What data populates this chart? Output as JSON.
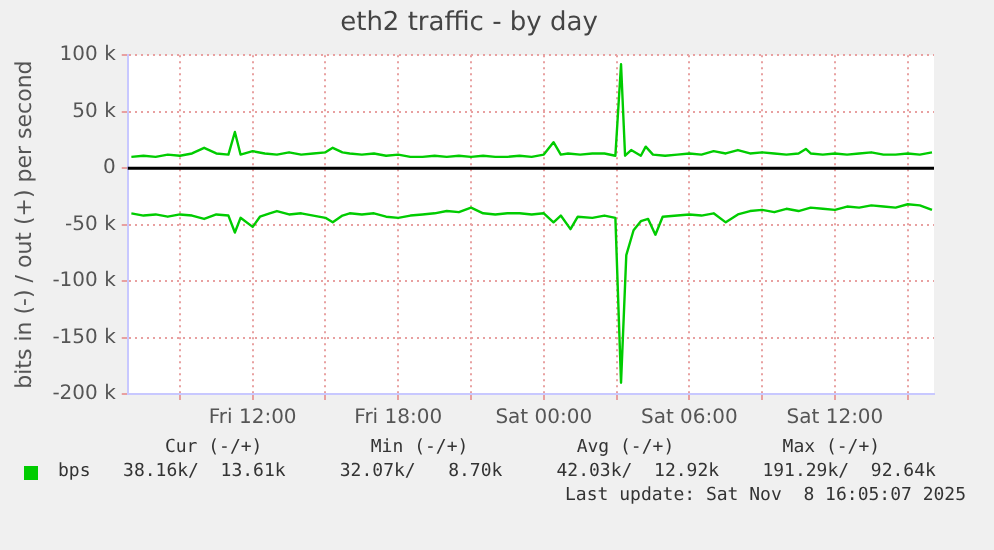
{
  "chart_data": {
    "type": "line",
    "title": "eth2 traffic - by day",
    "ylabel": "bits in (-) / out (+) per second",
    "xlim": [
      "2025-11-07T06:51",
      "2025-11-08T16:05"
    ],
    "xticks": [
      {
        "value": "2025-11-07T09:00",
        "label": null
      },
      {
        "value": "2025-11-07T12:00",
        "label": "Fri 12:00"
      },
      {
        "value": "2025-11-07T15:00",
        "label": null
      },
      {
        "value": "2025-11-07T18:00",
        "label": "Fri 18:00"
      },
      {
        "value": "2025-11-07T21:00",
        "label": null
      },
      {
        "value": "2025-11-08T00:00",
        "label": "Sat 00:00"
      },
      {
        "value": "2025-11-08T03:00",
        "label": null
      },
      {
        "value": "2025-11-08T06:00",
        "label": "Sat 06:00"
      },
      {
        "value": "2025-11-08T09:00",
        "label": null
      },
      {
        "value": "2025-11-08T12:00",
        "label": "Sat 12:00"
      },
      {
        "value": "2025-11-08T15:00",
        "label": null
      }
    ],
    "ylim": [
      -200000,
      100000
    ],
    "yticks": [
      {
        "value": -200000,
        "label": "-200 k"
      },
      {
        "value": -150000,
        "label": "-150 k"
      },
      {
        "value": -100000,
        "label": "-100 k"
      },
      {
        "value": -50000,
        "label": "-50 k"
      },
      0,
      {
        "value": 50000,
        "label": "50 k"
      },
      {
        "value": 100000,
        "label": "100 k"
      }
    ],
    "grid": true,
    "legend": "bottom left",
    "marker": "none",
    "line_style": "solid",
    "ref_lines": [
      {
        "axis": "y",
        "value": 0,
        "color": "#000000"
      }
    ],
    "series": [
      {
        "name": "bps",
        "color": "#00cc00",
        "x": [
          "2025-11-07T07:00",
          "2025-11-07T07:30",
          "2025-11-07T08:00",
          "2025-11-07T08:30",
          "2025-11-07T09:00",
          "2025-11-07T09:30",
          "2025-11-07T10:00",
          "2025-11-07T10:30",
          "2025-11-07T11:00",
          "2025-11-07T11:16",
          "2025-11-07T11:30",
          "2025-11-07T12:00",
          "2025-11-07T12:30",
          "2025-11-07T13:00",
          "2025-11-07T13:30",
          "2025-11-07T14:00",
          "2025-11-07T14:30",
          "2025-11-07T15:00",
          "2025-11-07T15:18",
          "2025-11-07T15:42",
          "2025-11-07T16:00",
          "2025-11-07T16:30",
          "2025-11-07T17:00",
          "2025-11-07T17:30",
          "2025-11-07T18:00",
          "2025-11-07T18:30",
          "2025-11-07T19:00",
          "2025-11-07T19:30",
          "2025-11-07T20:00",
          "2025-11-07T20:30",
          "2025-11-07T21:00",
          "2025-11-07T21:30",
          "2025-11-07T22:00",
          "2025-11-07T22:30",
          "2025-11-07T23:00",
          "2025-11-07T23:30",
          "2025-11-08T00:00",
          "2025-11-08T00:24",
          "2025-11-08T00:42",
          "2025-11-08T01:00",
          "2025-11-08T01:30",
          "2025-11-08T02:00",
          "2025-11-08T02:30",
          "2025-11-08T02:57",
          "2025-11-08T03:11",
          "2025-11-08T03:21",
          "2025-11-08T03:36",
          "2025-11-08T04:00",
          "2025-11-08T04:12",
          "2025-11-08T04:30",
          "2025-11-08T05:00",
          "2025-11-08T05:30",
          "2025-11-08T06:00",
          "2025-11-08T06:30",
          "2025-11-08T07:00",
          "2025-11-08T07:30",
          "2025-11-08T08:00",
          "2025-11-08T08:30",
          "2025-11-08T09:00",
          "2025-11-08T09:30",
          "2025-11-08T10:00",
          "2025-11-08T10:30",
          "2025-11-08T10:48",
          "2025-11-08T11:00",
          "2025-11-08T11:30",
          "2025-11-08T12:00",
          "2025-11-08T12:30",
          "2025-11-08T13:00",
          "2025-11-08T13:30",
          "2025-11-08T14:00",
          "2025-11-08T14:30",
          "2025-11-08T15:00",
          "2025-11-08T15:30",
          "2025-11-08T16:00"
        ],
        "values": [
          10000,
          11000,
          10000,
          12000,
          11000,
          13000,
          18000,
          13000,
          12000,
          32000,
          12000,
          15000,
          13000,
          12000,
          14000,
          12000,
          13000,
          14000,
          18000,
          14000,
          13000,
          12000,
          13000,
          11000,
          12000,
          10000,
          10000,
          11000,
          10000,
          11000,
          10000,
          11000,
          10000,
          10000,
          11000,
          10000,
          12000,
          23000,
          12000,
          13000,
          12000,
          13000,
          13000,
          11000,
          92000,
          11000,
          16000,
          11000,
          19000,
          12000,
          11000,
          12000,
          13000,
          12000,
          15000,
          13000,
          16000,
          13000,
          14000,
          13000,
          12000,
          13000,
          17000,
          13000,
          12000,
          13000,
          12000,
          13000,
          14000,
          12000,
          12000,
          13000,
          12000,
          14000
        ]
      },
      {
        "color": "#00cc00",
        "x": [
          "2025-11-07T07:00",
          "2025-11-07T07:30",
          "2025-11-07T08:00",
          "2025-11-07T08:30",
          "2025-11-07T09:00",
          "2025-11-07T09:30",
          "2025-11-07T10:00",
          "2025-11-07T10:30",
          "2025-11-07T11:00",
          "2025-11-07T11:16",
          "2025-11-07T11:30",
          "2025-11-07T12:00",
          "2025-11-07T12:18",
          "2025-11-07T12:42",
          "2025-11-07T13:00",
          "2025-11-07T13:30",
          "2025-11-07T14:00",
          "2025-11-07T14:30",
          "2025-11-07T15:00",
          "2025-11-07T15:18",
          "2025-11-07T15:42",
          "2025-11-07T16:00",
          "2025-11-07T16:30",
          "2025-11-07T17:00",
          "2025-11-07T17:30",
          "2025-11-07T18:00",
          "2025-11-07T18:30",
          "2025-11-07T19:00",
          "2025-11-07T19:30",
          "2025-11-07T20:00",
          "2025-11-07T20:30",
          "2025-11-07T21:00",
          "2025-11-07T21:30",
          "2025-11-07T22:00",
          "2025-11-07T22:30",
          "2025-11-07T23:00",
          "2025-11-07T23:30",
          "2025-11-08T00:00",
          "2025-11-08T00:24",
          "2025-11-08T00:42",
          "2025-11-08T01:06",
          "2025-11-08T01:24",
          "2025-11-08T02:00",
          "2025-11-08T02:30",
          "2025-11-08T02:57",
          "2025-11-08T03:11",
          "2025-11-08T03:24",
          "2025-11-08T03:42",
          "2025-11-08T04:00",
          "2025-11-08T04:18",
          "2025-11-08T04:36",
          "2025-11-08T04:54",
          "2025-11-08T05:30",
          "2025-11-08T06:00",
          "2025-11-08T06:30",
          "2025-11-08T07:00",
          "2025-11-08T07:30",
          "2025-11-08T08:00",
          "2025-11-08T08:30",
          "2025-11-08T09:00",
          "2025-11-08T09:30",
          "2025-11-08T10:00",
          "2025-11-08T10:30",
          "2025-11-08T11:00",
          "2025-11-08T11:30",
          "2025-11-08T12:00",
          "2025-11-08T12:30",
          "2025-11-08T13:00",
          "2025-11-08T13:30",
          "2025-11-08T14:00",
          "2025-11-08T14:30",
          "2025-11-08T15:00",
          "2025-11-08T15:30",
          "2025-11-08T16:00"
        ],
        "values": [
          -40000,
          -42000,
          -41000,
          -43000,
          -41000,
          -42000,
          -45000,
          -41000,
          -42000,
          -57000,
          -44000,
          -52000,
          -43000,
          -40000,
          -38000,
          -41000,
          -40000,
          -42000,
          -44000,
          -48000,
          -42000,
          -40000,
          -41000,
          -40000,
          -43000,
          -44000,
          -42000,
          -41000,
          -40000,
          -38000,
          -39000,
          -35000,
          -40000,
          -41000,
          -40000,
          -40000,
          -41000,
          -40000,
          -48000,
          -42000,
          -54000,
          -43000,
          -44000,
          -42000,
          -44000,
          -190000,
          -77000,
          -55000,
          -47000,
          -45000,
          -59000,
          -43000,
          -42000,
          -41000,
          -42000,
          -40000,
          -48000,
          -41000,
          -38000,
          -37000,
          -39000,
          -36000,
          -38000,
          -35000,
          -36000,
          -37000,
          -34000,
          -35000,
          -33000,
          -34000,
          -35000,
          -32000,
          -33000,
          -37000
        ]
      }
    ],
    "annotations": [
      "       Cur (-/+)          Min (-/+)          Avg (-/+)          Max (-/+)",
      "   38.16k/  13.61k     32.07k/   8.70k     42.03k/  12.92k    191.29k/  92.64k",
      "Last update: Sat Nov  8 16:05:07 2025"
    ]
  }
}
